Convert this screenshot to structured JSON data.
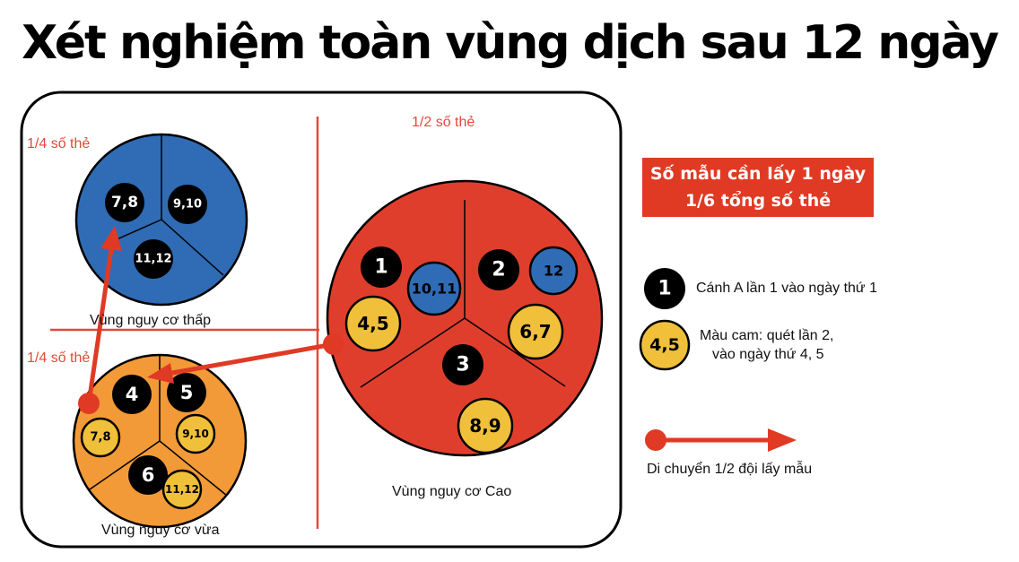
{
  "title": "Xét nghiệm toàn vùng dịch sau 12 ngày",
  "regions": {
    "half_label": "1/2 số thẻ",
    "quarter_top_label": "1/4 số thẻ",
    "quarter_bottom_label": "1/4 số thẻ"
  },
  "zones": {
    "low": {
      "label": "Vùng nguy cơ thấp",
      "color": "#2f6cb5",
      "badges": [
        "7,8",
        "9,10",
        "11,12"
      ]
    },
    "medium": {
      "label": "Vùng nguy cơ vừa",
      "color": "#f29a38",
      "badges": [
        "4",
        "5",
        "6",
        "7,8",
        "9,10",
        "11,12"
      ]
    },
    "high": {
      "label": "Vùng nguy cơ Cao",
      "color": "#e03e2d",
      "badges": [
        "1",
        "2",
        "3",
        "10,11",
        "12",
        "4,5",
        "6,7",
        "8,9"
      ]
    }
  },
  "legend": {
    "header_line1": "Số mẫu cần lấy 1 ngày",
    "header_line2": "1/6 tổng số thẻ",
    "black_badge": "1",
    "black_text": "Cánh A lần 1 vào ngày thứ 1",
    "yellow_badge": "4,5",
    "yellow_text_line1": "Màu cam: quét lần 2,",
    "yellow_text_line2": "vào ngày thứ 4, 5",
    "arrow_text": "Di chuyển 1/2 đội lấy mẫu"
  },
  "colors": {
    "red": "#e03e2d",
    "blue": "#2f6cb5",
    "orange": "#f29a38",
    "yellow": "#f0c03b",
    "black": "#000000"
  }
}
